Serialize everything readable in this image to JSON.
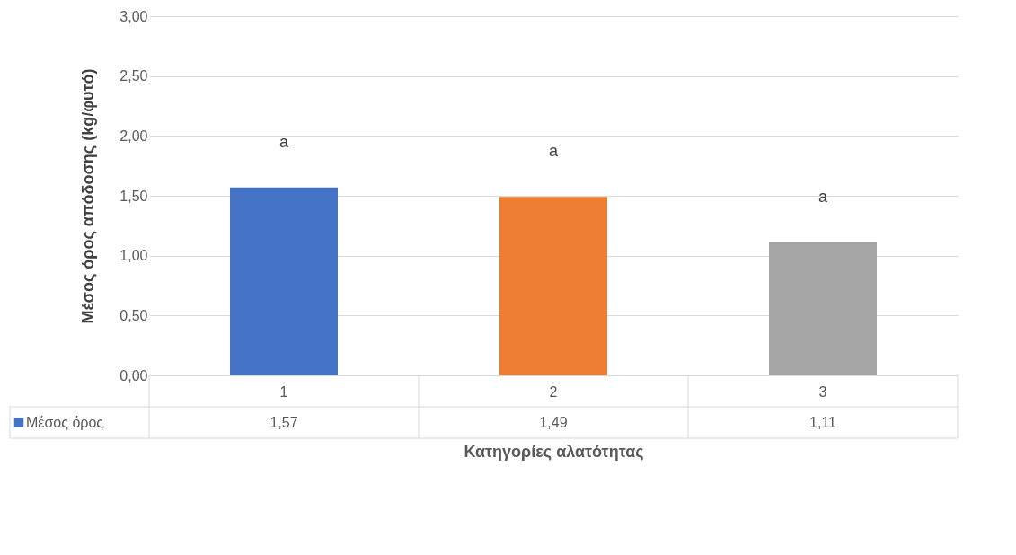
{
  "chart_data": {
    "type": "bar",
    "xlabel": "Κατηγορίες αλατότητας",
    "ylabel": "Μέσος όρος απόδοσης (kg/φυτό)",
    "categories": [
      "1",
      "2",
      "3"
    ],
    "series": [
      {
        "name": "Μέσος όρος",
        "color": "#4472c4",
        "colors": [
          "#4472c4",
          "#ed7d31",
          "#a5a5a5"
        ],
        "values": [
          1.57,
          1.49,
          1.11
        ],
        "value_labels": [
          "1,57",
          "1,49",
          "1,11"
        ]
      }
    ],
    "ylim": [
      0,
      3
    ],
    "yticks": [
      {
        "value": 0,
        "label": "0,00"
      },
      {
        "value": 0.5,
        "label": "0,50"
      },
      {
        "value": 1,
        "label": "1,00"
      },
      {
        "value": 1.5,
        "label": "1,50"
      },
      {
        "value": 2,
        "label": "2,00"
      },
      {
        "value": 2.5,
        "label": "2,50"
      },
      {
        "value": 3,
        "label": "3,00"
      }
    ],
    "annotations": [
      "a",
      "a",
      "a"
    ],
    "grid": "y",
    "legend": "bottom left"
  }
}
